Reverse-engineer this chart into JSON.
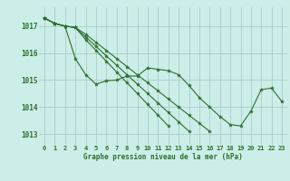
{
  "title": "Graphe pression niveau de la mer (hPa)",
  "background_color": "#cceee8",
  "plot_bg_color": "#cceee8",
  "grid_color": "#aacccc",
  "line_color": "#2d6e2d",
  "marker_color": "#2d6e2d",
  "ylim": [
    1012.6,
    1017.7
  ],
  "yticks": [
    1013,
    1014,
    1015,
    1016,
    1017
  ],
  "xlim": [
    -0.5,
    23.5
  ],
  "xticks": [
    0,
    1,
    2,
    3,
    4,
    5,
    6,
    7,
    8,
    9,
    10,
    11,
    12,
    13,
    14,
    15,
    16,
    17,
    18,
    19,
    20,
    21,
    22,
    23
  ],
  "series": [
    [
      1017.3,
      1017.1,
      1017.0,
      1015.8,
      1015.2,
      1014.85,
      1014.97,
      1015.0,
      1015.15,
      1015.15,
      1015.45,
      1015.4,
      1015.35,
      1015.2,
      1014.8,
      1014.35,
      1014.0,
      1013.65,
      1013.35,
      1013.3,
      1013.85,
      1014.65,
      1014.7,
      1014.2
    ],
    [
      1017.3,
      1017.1,
      1017.0,
      1016.95,
      1016.5,
      1016.1,
      1015.7,
      1015.3,
      1014.9,
      1014.5,
      1014.1,
      1013.7,
      1013.3,
      null,
      null,
      null,
      null,
      null,
      null,
      null,
      null,
      null,
      null,
      null
    ],
    [
      1017.3,
      1017.1,
      1017.0,
      1016.95,
      1016.6,
      1016.25,
      1015.9,
      1015.55,
      1015.2,
      1014.85,
      1014.5,
      1014.15,
      1013.8,
      1013.45,
      1013.1,
      null,
      null,
      null,
      null,
      null,
      null,
      null,
      null,
      null
    ],
    [
      1017.3,
      1017.1,
      1017.0,
      1016.95,
      1016.7,
      1016.4,
      1016.1,
      1015.8,
      1015.5,
      1015.2,
      1014.9,
      1014.6,
      1014.3,
      1014.0,
      1013.7,
      1013.4,
      1013.1,
      null,
      null,
      null,
      null,
      null,
      null,
      null
    ]
  ]
}
